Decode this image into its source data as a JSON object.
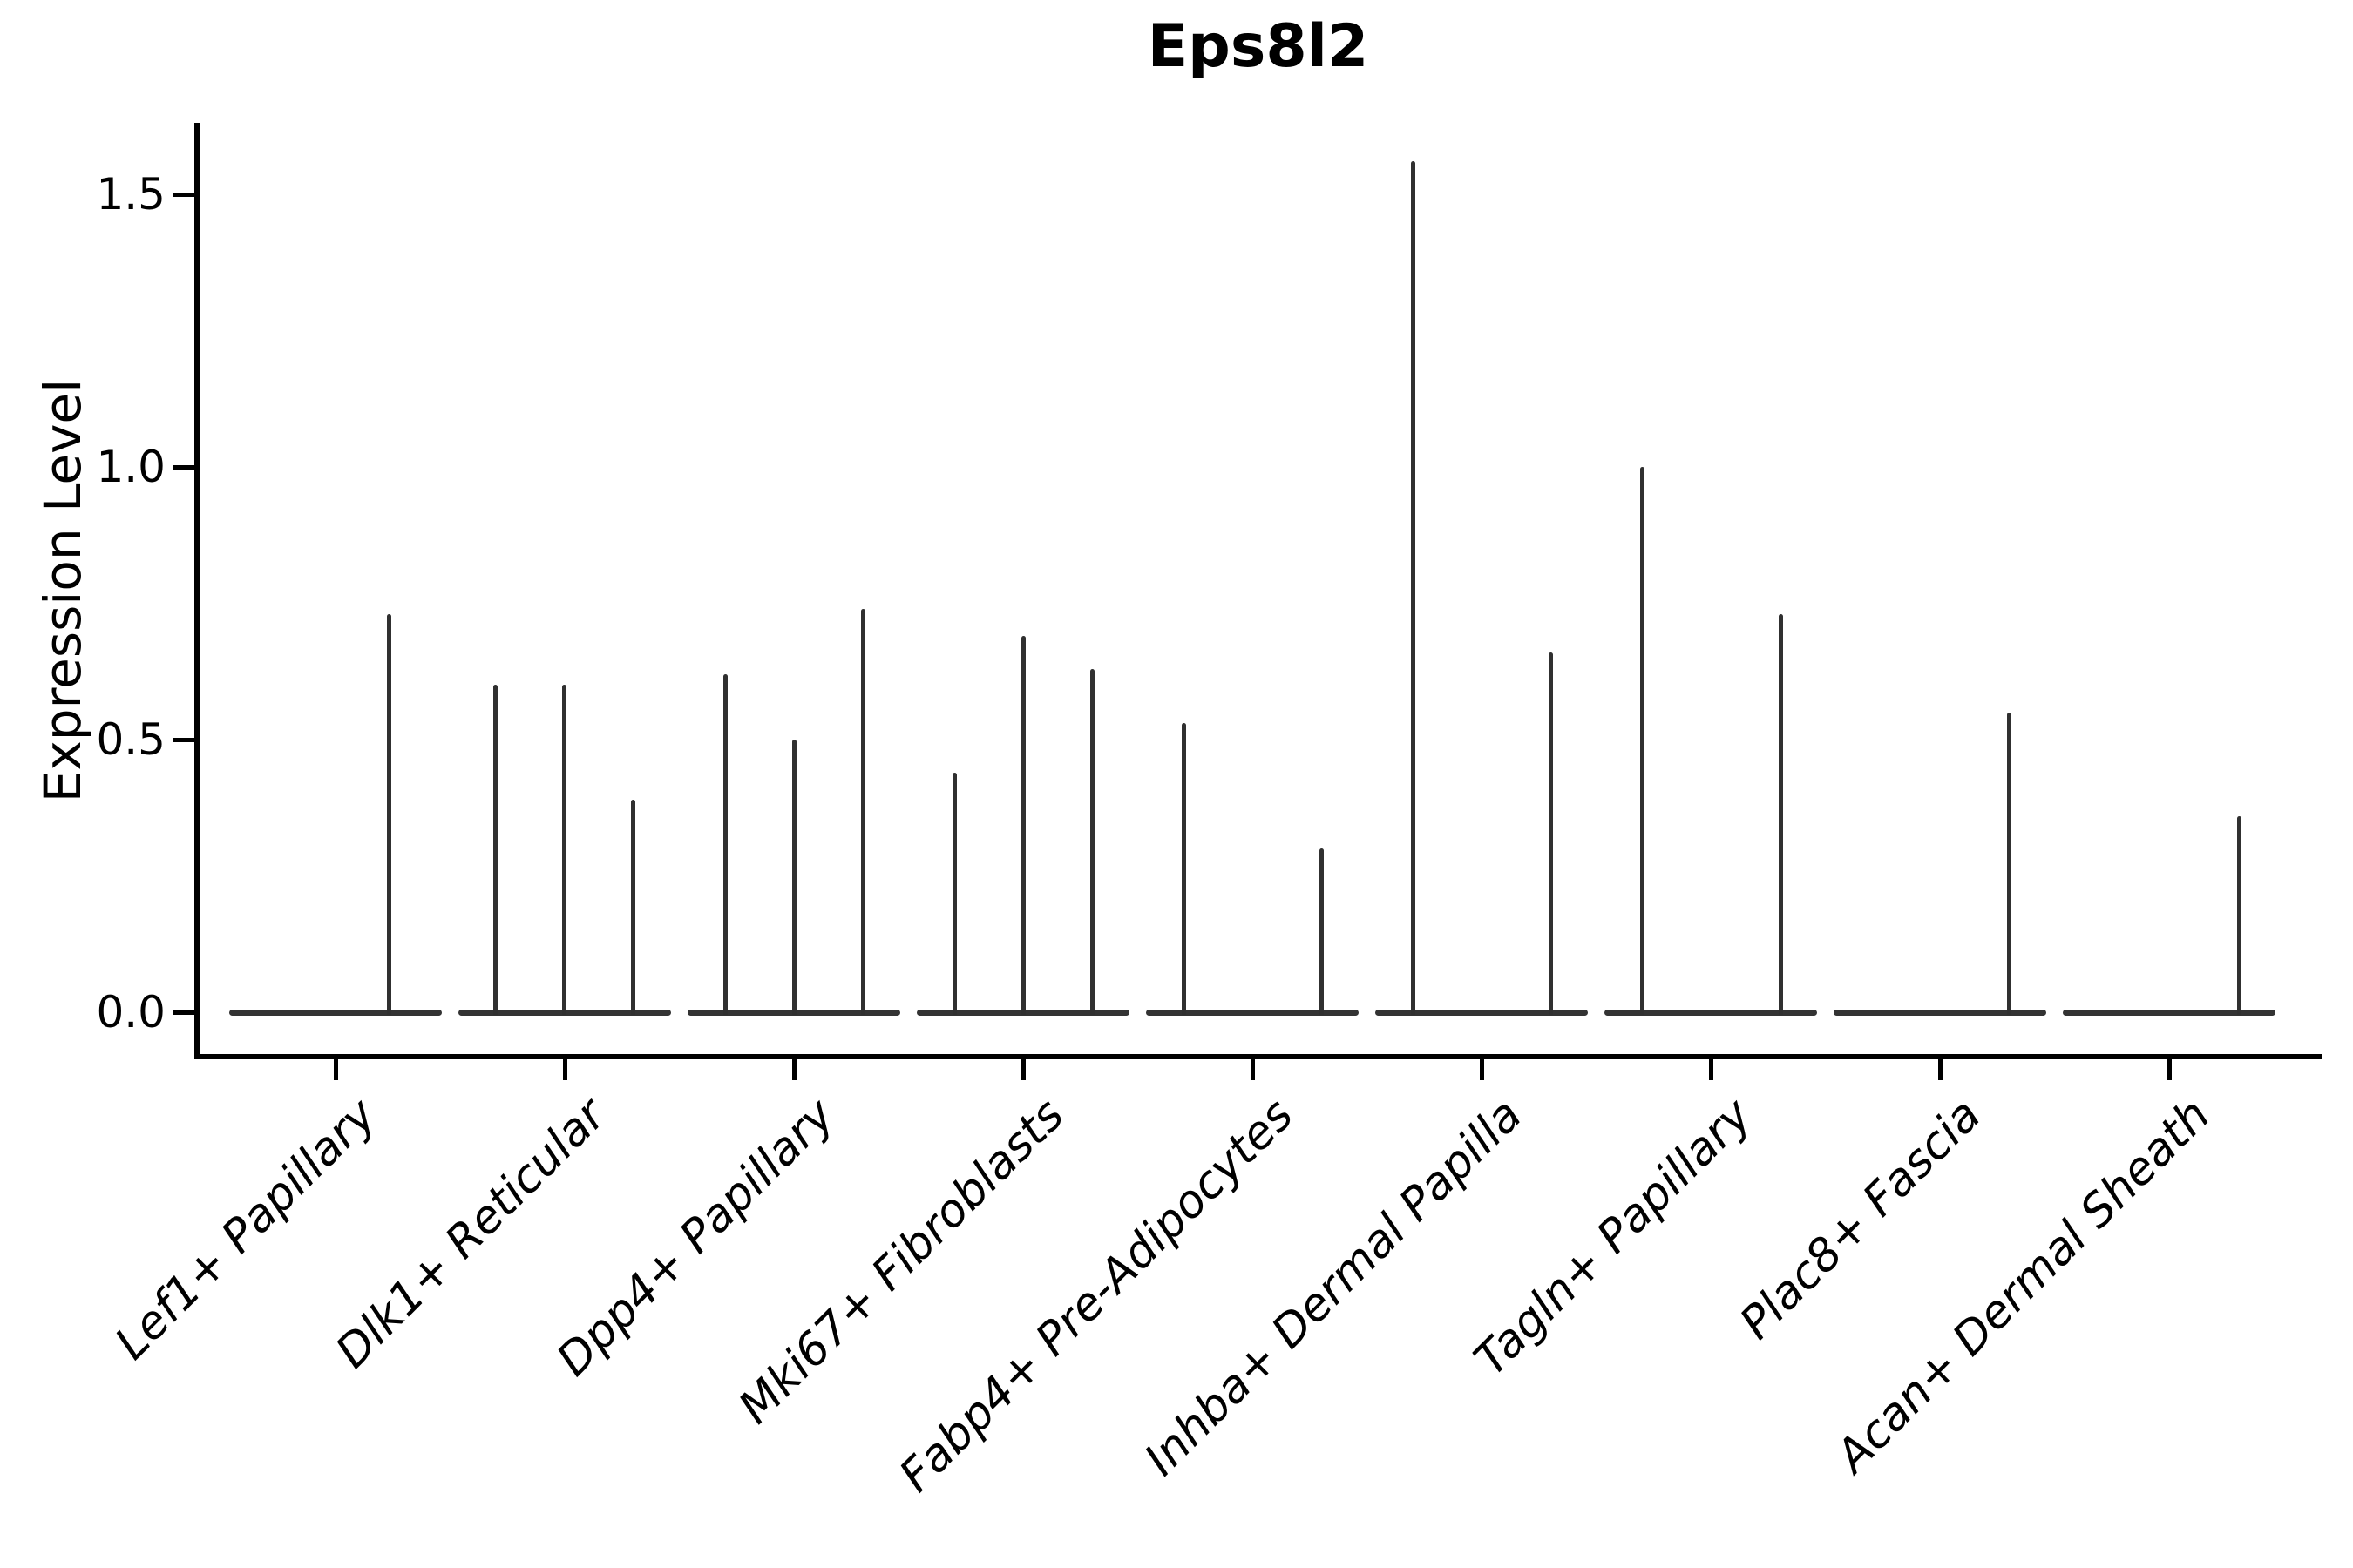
{
  "chart_data": {
    "type": "violin",
    "title": "Eps8l2",
    "ylabel": "Expression Level",
    "ytick_labels": [
      "0.0",
      "0.5",
      "1.0",
      "1.5"
    ],
    "ytick_values": [
      0.0,
      0.5,
      1.0,
      1.5
    ],
    "ylim": [
      -0.09,
      1.63
    ],
    "grid": false,
    "legend": "none",
    "background": "#ffffff",
    "violin_color": "#333333",
    "axis_color": "#000000",
    "categories": [
      "Lef1+ Papillary",
      "Dlk1+ Reticular",
      "Dpp4+ Papillary",
      "Mki67+ Fibroblasts",
      "Fabp4+ Pre-Adipocytes",
      "Inhba+ Dermal Papilla",
      "Tagln+ Papillary",
      "Plac8+ Fascia",
      "Acan+ Dermal Sheath"
    ],
    "groups": [
      {
        "label": "Lef1+ Papillary",
        "spikes": [
          {
            "dx": 61,
            "max": 0.73
          }
        ]
      },
      {
        "label": "Dlk1+ Reticular",
        "spikes": [
          {
            "dx": -80,
            "max": 0.6
          },
          {
            "dx": -1,
            "max": 0.6
          },
          {
            "dx": 78,
            "max": 0.39
          }
        ]
      },
      {
        "label": "Dpp4+ Papillary",
        "spikes": [
          {
            "dx": -79,
            "max": 0.62
          },
          {
            "dx": 0,
            "max": 0.5
          },
          {
            "dx": 79,
            "max": 0.74
          }
        ]
      },
      {
        "label": "Mki67+ Fibroblasts",
        "spikes": [
          {
            "dx": -79,
            "max": 0.44
          },
          {
            "dx": 0,
            "max": 0.69
          },
          {
            "dx": 79,
            "max": 0.63
          }
        ]
      },
      {
        "label": "Fabp4+ Pre-Adipocytes",
        "spikes": [
          {
            "dx": -79,
            "max": 0.53
          },
          {
            "dx": 79,
            "max": 0.3
          }
        ]
      },
      {
        "label": "Inhba+ Dermal Papilla",
        "spikes": [
          {
            "dx": -79,
            "max": 1.56
          },
          {
            "dx": 79,
            "max": 0.66
          }
        ]
      },
      {
        "label": "Tagln+ Papillary",
        "spikes": [
          {
            "dx": -79,
            "max": 1.0
          },
          {
            "dx": 80,
            "max": 0.73
          }
        ]
      },
      {
        "label": "Plac8+ Fascia",
        "spikes": [
          {
            "dx": 79,
            "max": 0.55
          }
        ]
      },
      {
        "label": "Acan+ Dermal Sheath",
        "spikes": [
          {
            "dx": 80,
            "max": 0.36
          }
        ]
      }
    ]
  }
}
